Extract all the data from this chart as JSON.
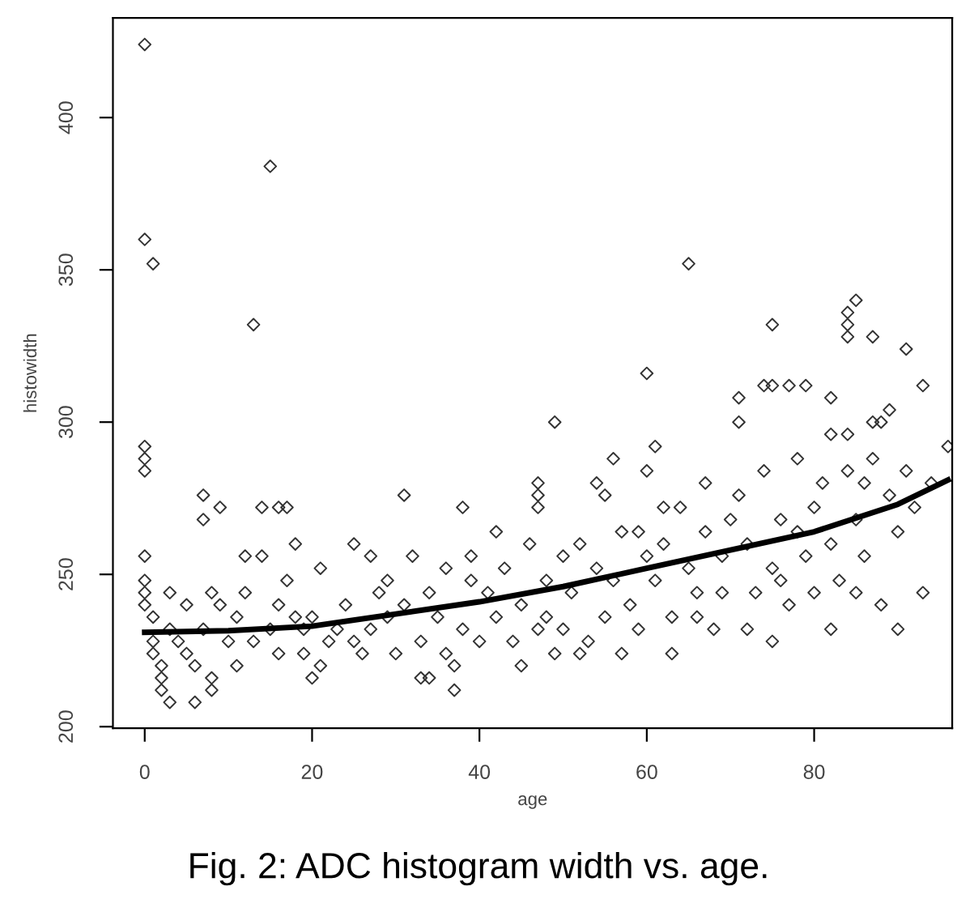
{
  "chart_data": {
    "type": "scatter",
    "xlabel": "age",
    "ylabel": "histowidth",
    "annotations": [
      "Fig. 2: ADC histogram width vs. age."
    ],
    "xlim": [
      -3.8,
      96.5
    ],
    "ylim": [
      199.5,
      432.7
    ],
    "xticks": [
      0,
      20,
      40,
      60,
      80
    ],
    "yticks": [
      200,
      250,
      300,
      350,
      400
    ],
    "grid": false,
    "series": [
      {
        "marker": "diamond",
        "color": "#333333",
        "x": [
          0,
          0,
          1,
          15,
          13,
          0,
          0,
          0,
          7,
          7,
          9,
          14,
          16,
          17,
          31,
          38,
          65,
          60,
          75,
          77,
          79,
          74,
          71,
          82,
          84,
          84,
          85,
          84,
          87,
          91,
          93,
          96,
          89,
          75,
          87,
          71,
          49,
          47,
          47,
          47,
          56,
          54,
          55,
          61,
          60,
          62,
          3,
          6,
          2,
          8,
          20,
          37,
          33,
          0,
          0,
          0,
          0,
          1,
          1,
          1,
          2,
          2,
          3,
          3,
          4,
          5,
          5,
          6,
          7,
          8,
          9,
          10,
          8,
          11,
          12,
          13,
          14,
          15,
          16,
          17,
          18,
          19,
          11,
          12,
          16,
          18,
          19,
          20,
          21,
          22,
          23,
          24,
          25,
          26,
          27,
          28,
          29,
          21,
          25,
          27,
          29,
          30,
          31,
          32,
          33,
          34,
          35,
          36,
          37,
          38,
          39,
          40,
          34,
          39,
          36,
          41,
          42,
          43,
          44,
          45,
          46,
          47,
          48,
          49,
          50,
          42,
          45,
          48,
          50,
          51,
          52,
          53,
          54,
          55,
          56,
          57,
          58,
          59,
          60,
          52,
          57,
          59,
          61,
          62,
          63,
          64,
          65,
          66,
          67,
          68,
          69,
          70,
          63,
          66,
          67,
          69,
          71,
          72,
          73,
          74,
          75,
          76,
          77,
          78,
          79,
          80,
          72,
          75,
          76,
          78,
          80,
          81,
          82,
          83,
          84,
          85,
          86,
          87,
          88,
          89,
          90,
          82,
          85,
          86,
          88,
          90,
          91,
          92,
          93,
          94,
          82,
          84
        ],
        "values": [
          424,
          360,
          352,
          384,
          332,
          292,
          288,
          284,
          276,
          268,
          272,
          272,
          272,
          272,
          276,
          272,
          352,
          316,
          332,
          312,
          312,
          312,
          308,
          308,
          336,
          332,
          340,
          328,
          328,
          324,
          312,
          292,
          304,
          312,
          300,
          300,
          300,
          280,
          276,
          272,
          288,
          280,
          276,
          292,
          284,
          272,
          208,
          208,
          212,
          212,
          216,
          212,
          216,
          256,
          248,
          244,
          240,
          236,
          228,
          224,
          220,
          216,
          232,
          244,
          228,
          224,
          240,
          220,
          232,
          216,
          240,
          228,
          244,
          236,
          244,
          228,
          256,
          232,
          224,
          248,
          236,
          224,
          220,
          256,
          240,
          260,
          232,
          236,
          252,
          228,
          232,
          240,
          260,
          224,
          256,
          244,
          236,
          220,
          228,
          232,
          248,
          224,
          240,
          256,
          228,
          244,
          236,
          252,
          220,
          232,
          248,
          228,
          216,
          256,
          224,
          244,
          236,
          252,
          228,
          240,
          260,
          232,
          248,
          224,
          256,
          264,
          220,
          236,
          232,
          244,
          260,
          228,
          252,
          236,
          248,
          264,
          240,
          232,
          256,
          224,
          224,
          264,
          248,
          260,
          236,
          272,
          252,
          244,
          264,
          232,
          256,
          268,
          224,
          236,
          280,
          244,
          276,
          260,
          244,
          284,
          252,
          268,
          240,
          288,
          256,
          272,
          232,
          228,
          248,
          264,
          244,
          280,
          260,
          248,
          296,
          268,
          256,
          288,
          240,
          276,
          264,
          232,
          244,
          280,
          300,
          232,
          284,
          272,
          244,
          280,
          296,
          284
        ]
      },
      {
        "type": "line",
        "marker": "none",
        "color": "#000000",
        "x": [
          0,
          10,
          20,
          30,
          40,
          50,
          60,
          70,
          80,
          90,
          96
        ],
        "values": [
          231,
          231.5,
          233,
          237,
          241,
          246,
          252,
          258,
          264,
          273,
          281
        ]
      }
    ]
  }
}
